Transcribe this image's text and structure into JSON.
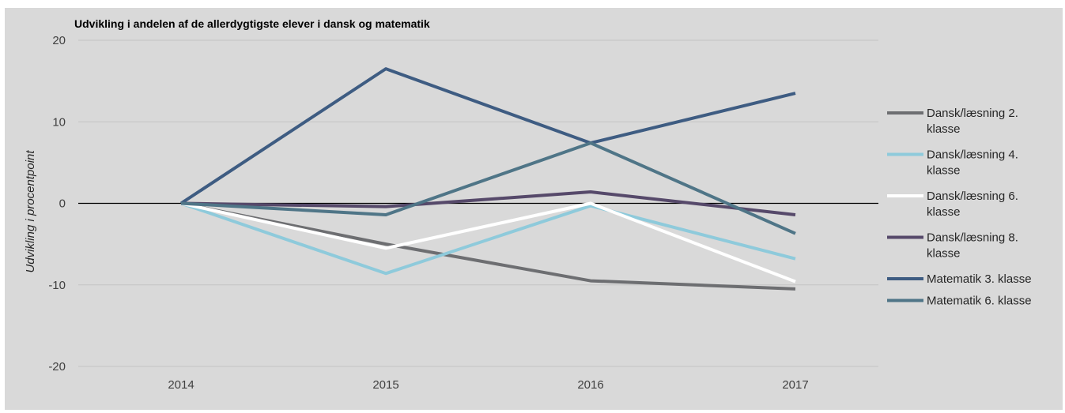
{
  "chart_data": {
    "type": "line",
    "title": "Udvikling i andelen af de allerdygtigste elever i dansk og matematik",
    "ylabel": "Udvikling i procentpoint",
    "xlabel": "",
    "ylim": [
      -20,
      20
    ],
    "yticks": [
      20,
      10,
      0,
      -10,
      -20
    ],
    "ytick_labels": [
      "20",
      "10",
      "0",
      "-10",
      "-20"
    ],
    "x": [
      "2014",
      "2015",
      "2016",
      "2017"
    ],
    "legend_position": "right",
    "grid": true,
    "series": [
      {
        "name": "Dansk/læsning 2. klasse",
        "legend_lines": [
          "Dansk/læsning 2.",
          "klasse"
        ],
        "color": "#6d6e71",
        "values": [
          0,
          -5.0,
          -9.5,
          -10.5
        ]
      },
      {
        "name": "Dansk/læsning 4. klasse",
        "legend_lines": [
          "Dansk/læsning 4.",
          "klasse"
        ],
        "color": "#8ecadb",
        "values": [
          0,
          -8.6,
          -0.3,
          -6.8
        ]
      },
      {
        "name": "Dansk/læsning 6. klasse",
        "legend_lines": [
          "Dansk/læsning 6.",
          "klasse"
        ],
        "color": "#ffffff",
        "values": [
          0,
          -5.5,
          0,
          -9.6
        ]
      },
      {
        "name": "Dansk/læsning 8. klasse",
        "legend_lines": [
          "Dansk/læsning 8.",
          "klasse"
        ],
        "color": "#56496a",
        "values": [
          0,
          -0.4,
          1.4,
          -1.4
        ]
      },
      {
        "name": "Matematik 3. klasse",
        "legend_lines": [
          "Matematik 3. klasse"
        ],
        "color": "#3e5c82",
        "values": [
          0,
          16.5,
          7.4,
          13.5
        ]
      },
      {
        "name": "Matematik 6. klasse",
        "legend_lines": [
          "Matematik 6. klasse"
        ],
        "color": "#4f7587",
        "values": [
          0,
          -1.4,
          7.4,
          -3.7
        ]
      }
    ]
  }
}
